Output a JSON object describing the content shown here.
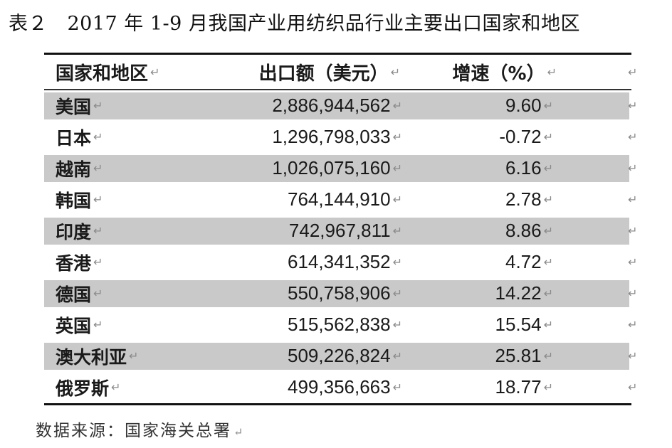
{
  "title": "表２　2017 年 1-9 月我国产业用纺织品行业主要出口国家和地区",
  "table": {
    "headers": {
      "region": "国家和地区",
      "amount": "出口额（美元）",
      "rate": "增速（%）"
    },
    "rows": [
      {
        "region": "美国",
        "amount": "2,886,944,562",
        "rate": "9.60"
      },
      {
        "region": "日本",
        "amount": "1,296,798,033",
        "rate": "-0.72"
      },
      {
        "region": "越南",
        "amount": "1,026,075,160",
        "rate": "6.16"
      },
      {
        "region": "韩国",
        "amount": "764,144,910",
        "rate": "2.78"
      },
      {
        "region": "印度",
        "amount": "742,967,811",
        "rate": "8.86"
      },
      {
        "region": "香港",
        "amount": "614,341,352",
        "rate": "4.72"
      },
      {
        "region": "德国",
        "amount": "550,758,906",
        "rate": "14.22"
      },
      {
        "region": "英国",
        "amount": "515,562,838",
        "rate": "15.54"
      },
      {
        "region": "澳大利亚",
        "amount": "509,226,824",
        "rate": "25.81"
      },
      {
        "region": "俄罗斯",
        "amount": "499,356,663",
        "rate": "18.77"
      }
    ]
  },
  "source": "数据来源：国家海关总署",
  "colors": {
    "shade": "#c9c9c9",
    "rule": "#111111"
  },
  "marks": {
    "return": "↵",
    "cell_end": "↵"
  }
}
